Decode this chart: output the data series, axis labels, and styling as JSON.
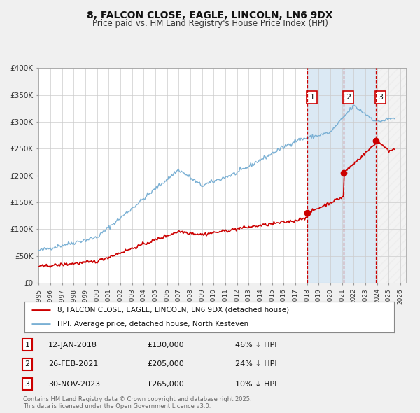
{
  "title": "8, FALCON CLOSE, EAGLE, LINCOLN, LN6 9DX",
  "subtitle": "Price paid vs. HM Land Registry's House Price Index (HPI)",
  "legend_line1": "8, FALCON CLOSE, EAGLE, LINCOLN, LN6 9DX (detached house)",
  "legend_line2": "HPI: Average price, detached house, North Kesteven",
  "footnote": "Contains HM Land Registry data © Crown copyright and database right 2025.\nThis data is licensed under the Open Government Licence v3.0.",
  "sale_color": "#cc0000",
  "hpi_color": "#7ab0d4",
  "background_color": "#f0f0f0",
  "plot_bg_color": "#ffffff",
  "ylim": [
    0,
    400000
  ],
  "yticks": [
    0,
    50000,
    100000,
    150000,
    200000,
    250000,
    300000,
    350000,
    400000
  ],
  "ytick_labels": [
    "£0",
    "£50K",
    "£100K",
    "£150K",
    "£200K",
    "£250K",
    "£300K",
    "£350K",
    "£400K"
  ],
  "sales": [
    {
      "date": 2018.04,
      "price": 130000,
      "label": "1"
    },
    {
      "date": 2021.16,
      "price": 205000,
      "label": "2"
    },
    {
      "date": 2023.92,
      "price": 265000,
      "label": "3"
    }
  ],
  "sale_annotations": [
    {
      "label": "1",
      "date_str": "12-JAN-2018",
      "price_str": "£130,000",
      "hpi_str": "46% ↓ HPI"
    },
    {
      "label": "2",
      "date_str": "26-FEB-2021",
      "price_str": "£205,000",
      "hpi_str": "24% ↓ HPI"
    },
    {
      "label": "3",
      "date_str": "30-NOV-2023",
      "price_str": "£265,000",
      "hpi_str": "10% ↓ HPI"
    }
  ],
  "vline_dates": [
    2018.04,
    2021.16,
    2023.92
  ],
  "xmin": 1995.0,
  "xmax": 2026.5
}
